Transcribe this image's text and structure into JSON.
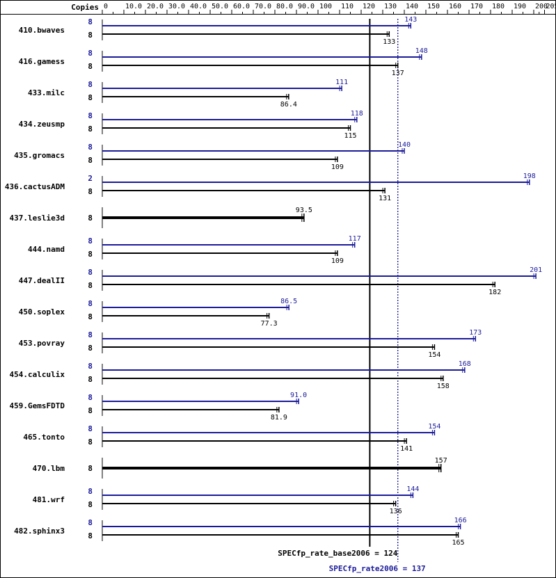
{
  "chart_data": {
    "type": "bar",
    "header": "Copies",
    "x_ticks": [
      0,
      10.0,
      20.0,
      30.0,
      40.0,
      50.0,
      60.0,
      70.0,
      80.0,
      90.0,
      100,
      110,
      120,
      130,
      140,
      150,
      160,
      170,
      180,
      190,
      200,
      205
    ],
    "x_tick_labels": [
      "0",
      "10.0",
      "20.0",
      "30.0",
      "40.0",
      "50.0",
      "60.0",
      "70.0",
      "80.0",
      "90.0",
      "100",
      "110",
      "120",
      "130",
      "140",
      "150",
      "160",
      "170",
      "180",
      "190",
      "200",
      "205"
    ],
    "xlim": [
      0,
      205
    ],
    "colors": {
      "peak": "#1a1a99",
      "base": "#000000"
    },
    "benchmarks": [
      {
        "name": "410.bwaves",
        "peak": {
          "copies": "8",
          "value": 143,
          "label": "143"
        },
        "base": {
          "copies": "8",
          "value": 133,
          "label": "133"
        }
      },
      {
        "name": "416.gamess",
        "peak": {
          "copies": "8",
          "value": 148,
          "label": "148"
        },
        "base": {
          "copies": "8",
          "value": 137,
          "label": "137"
        }
      },
      {
        "name": "433.milc",
        "peak": {
          "copies": "8",
          "value": 111,
          "label": "111"
        },
        "base": {
          "copies": "8",
          "value": 86.4,
          "label": "86.4"
        }
      },
      {
        "name": "434.zeusmp",
        "peak": {
          "copies": "8",
          "value": 118,
          "label": "118"
        },
        "base": {
          "copies": "8",
          "value": 115,
          "label": "115"
        }
      },
      {
        "name": "435.gromacs",
        "peak": {
          "copies": "8",
          "value": 140,
          "label": "140"
        },
        "base": {
          "copies": "8",
          "value": 109,
          "label": "109"
        }
      },
      {
        "name": "436.cactusADM",
        "peak": {
          "copies": "2",
          "value": 198,
          "label": "198"
        },
        "base": {
          "copies": "8",
          "value": 131,
          "label": "131"
        }
      },
      {
        "name": "437.leslie3d",
        "combined": {
          "copies": "8",
          "value": 93.5,
          "label": "93.5"
        }
      },
      {
        "name": "444.namd",
        "peak": {
          "copies": "8",
          "value": 117,
          "label": "117"
        },
        "base": {
          "copies": "8",
          "value": 109,
          "label": "109"
        }
      },
      {
        "name": "447.dealII",
        "peak": {
          "copies": "8",
          "value": 201,
          "label": "201"
        },
        "base": {
          "copies": "8",
          "value": 182,
          "label": "182"
        }
      },
      {
        "name": "450.soplex",
        "peak": {
          "copies": "8",
          "value": 86.5,
          "label": "86.5"
        },
        "base": {
          "copies": "8",
          "value": 77.3,
          "label": "77.3"
        }
      },
      {
        "name": "453.povray",
        "peak": {
          "copies": "8",
          "value": 173,
          "label": "173"
        },
        "base": {
          "copies": "8",
          "value": 154,
          "label": "154"
        }
      },
      {
        "name": "454.calculix",
        "peak": {
          "copies": "8",
          "value": 168,
          "label": "168"
        },
        "base": {
          "copies": "8",
          "value": 158,
          "label": "158"
        }
      },
      {
        "name": "459.GemsFDTD",
        "peak": {
          "copies": "8",
          "value": 91.0,
          "label": "91.0"
        },
        "base": {
          "copies": "8",
          "value": 81.9,
          "label": "81.9"
        }
      },
      {
        "name": "465.tonto",
        "peak": {
          "copies": "8",
          "value": 154,
          "label": "154"
        },
        "base": {
          "copies": "8",
          "value": 141,
          "label": "141"
        }
      },
      {
        "name": "470.lbm",
        "combined": {
          "copies": "8",
          "value": 157,
          "label": "157"
        }
      },
      {
        "name": "481.wrf",
        "peak": {
          "copies": "8",
          "value": 144,
          "label": "144"
        },
        "base": {
          "copies": "8",
          "value": 136,
          "label": "136"
        }
      },
      {
        "name": "482.sphinx3",
        "peak": {
          "copies": "8",
          "value": 166,
          "label": "166"
        },
        "base": {
          "copies": "8",
          "value": 165,
          "label": "165"
        }
      }
    ],
    "reference_lines": [
      {
        "label": "SPECfp_rate_base2006 = 124",
        "value": 124,
        "style": "solid",
        "color": "#000000"
      },
      {
        "label": "SPECfp_rate2006 = 137",
        "value": 137,
        "style": "dotted",
        "color": "#1a1a99"
      }
    ]
  }
}
